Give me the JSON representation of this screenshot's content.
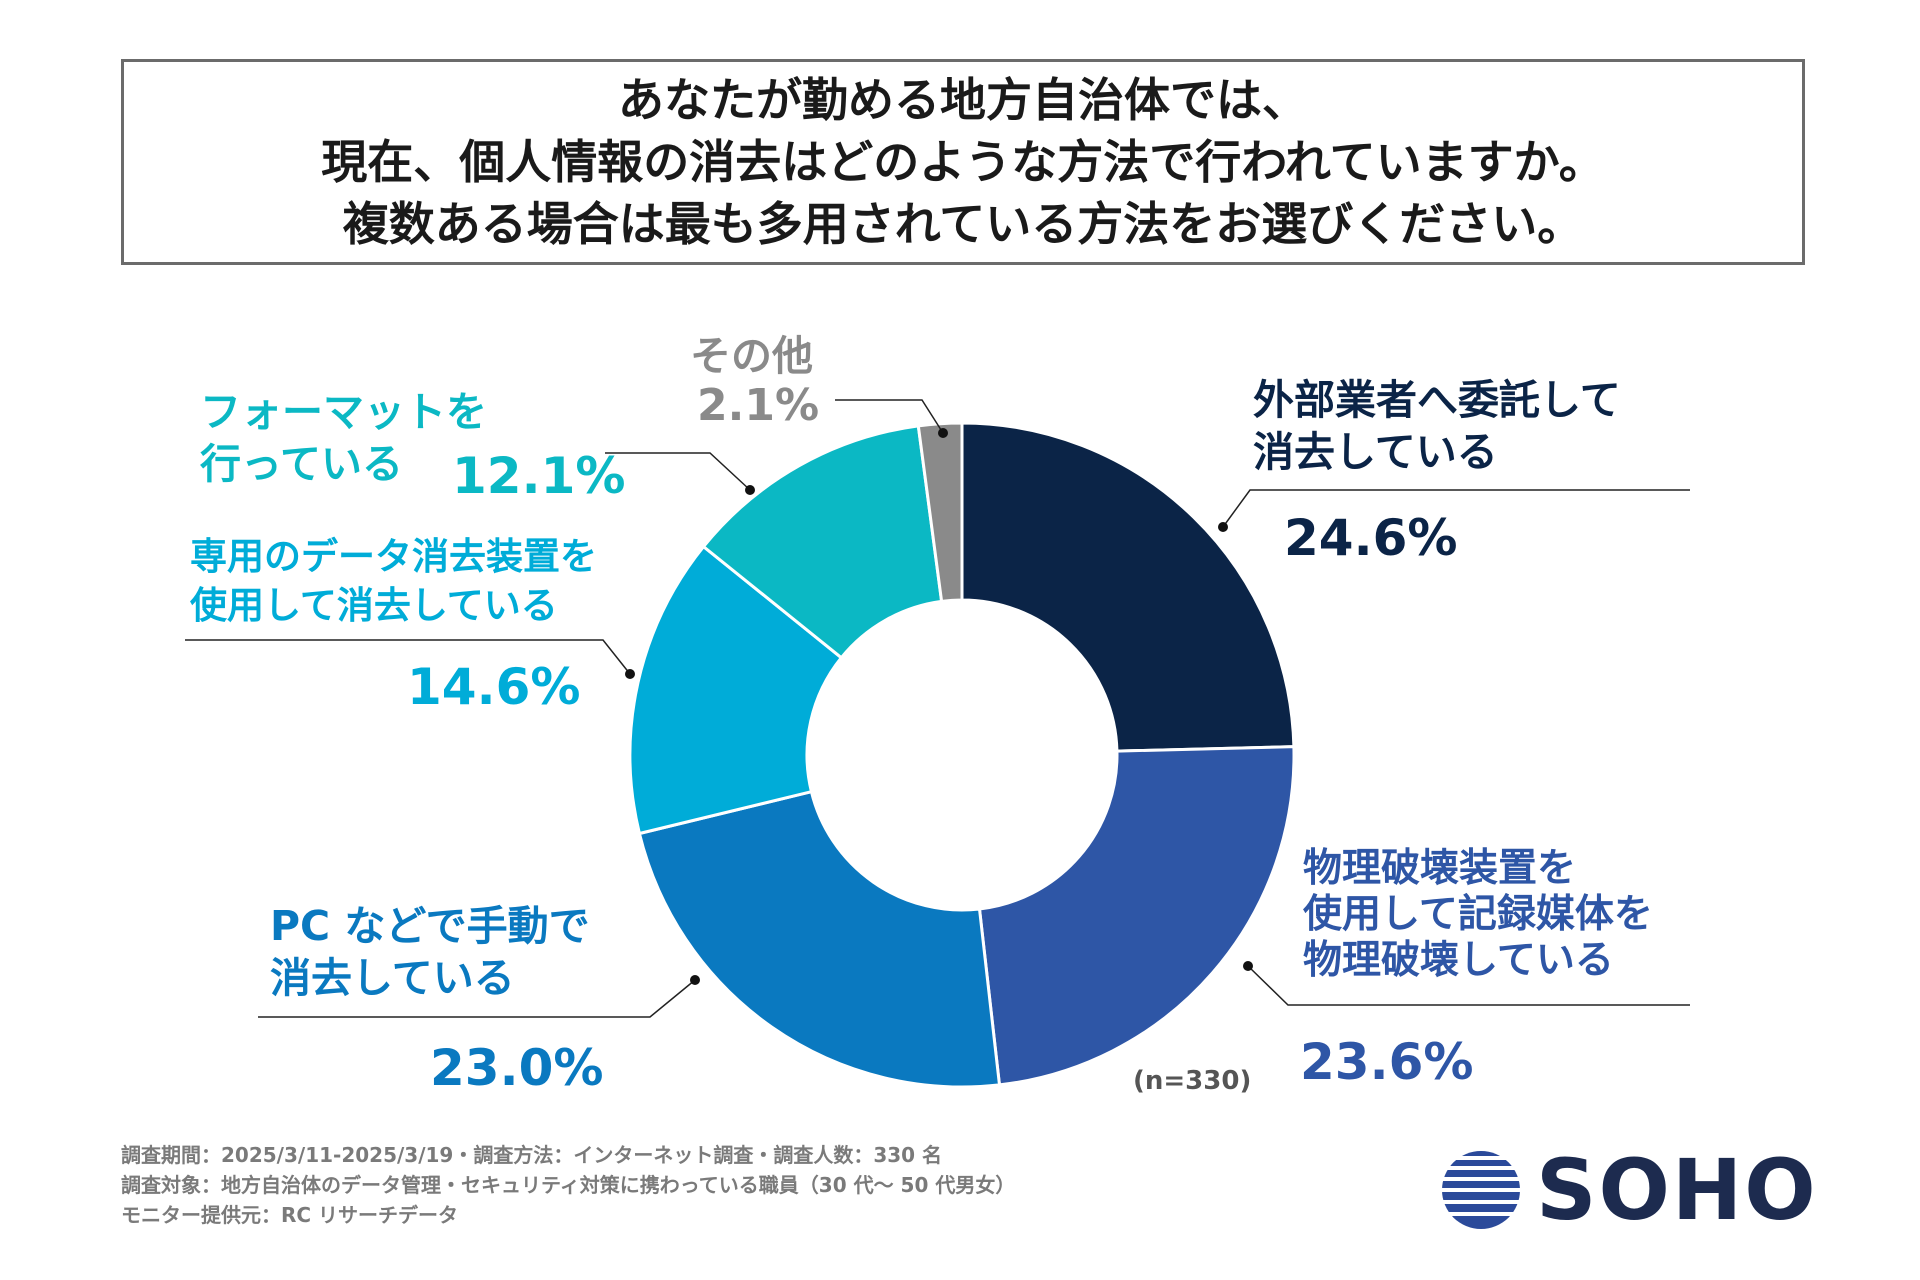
{
  "title": {
    "line1": "あなたが勤める地方自治体では、",
    "line2": "現在、個人情報の消去はどのような方法で行われていますか。",
    "line3": "複数ある場合は最も多用されている方法をお選びください。"
  },
  "chart_data": {
    "type": "pie",
    "donut": true,
    "title": "あなたが勤める地方自治体では、現在、個人情報の消去はどのような方法で行われていますか。複数ある場合は最も多用されている方法をお選びください。",
    "sample_note": "(n=330)",
    "unit": "%",
    "slices": [
      {
        "label": "外部業者へ委託して消去している",
        "label_lines": [
          "外部業者へ委託して",
          "消去している"
        ],
        "value": 24.6,
        "value_text": "24.6%",
        "color": "#0b2447"
      },
      {
        "label": "物理破壊装置を使用して記録媒体を物理破壊している",
        "label_lines": [
          "物理破壊装置を",
          "使用して記録媒体を",
          "物理破壊している"
        ],
        "value": 23.6,
        "value_text": "23.6%",
        "color": "#2e56a6"
      },
      {
        "label": "PC などで手動で消去している",
        "label_lines": [
          "PC などで手動で",
          "消去している"
        ],
        "value": 23.0,
        "value_text": "23.0%",
        "color": "#0a79c0"
      },
      {
        "label": "専用のデータ消去装置を使用して消去している",
        "label_lines": [
          "専用のデータ消去装置を",
          "使用して消去している"
        ],
        "value": 14.6,
        "value_text": "14.6%",
        "color": "#00acd8"
      },
      {
        "label": "フォーマットを行っている",
        "label_lines": [
          "フォーマットを",
          "行っている"
        ],
        "value": 12.1,
        "value_text": "12.1%",
        "color": "#0bb8c4"
      },
      {
        "label": "その他",
        "label_lines": [
          "その他"
        ],
        "value": 2.1,
        "value_text": "2.1%",
        "color": "#8a8a8a"
      }
    ]
  },
  "footer": {
    "line1": "調査期間：2025/3/11-2025/3/19・調査方法：インターネット調査・調査人数：330 名",
    "line2": "調査対象：地方自治体のデータ管理・セキュリティ対策に携わっている職員（30 代～ 50 代男女）",
    "line3": "モニター提供元：RC リサーチデータ"
  },
  "logo": {
    "text": "SOHO",
    "color": "#1d2b4f",
    "icon": "striped-sphere-icon"
  }
}
